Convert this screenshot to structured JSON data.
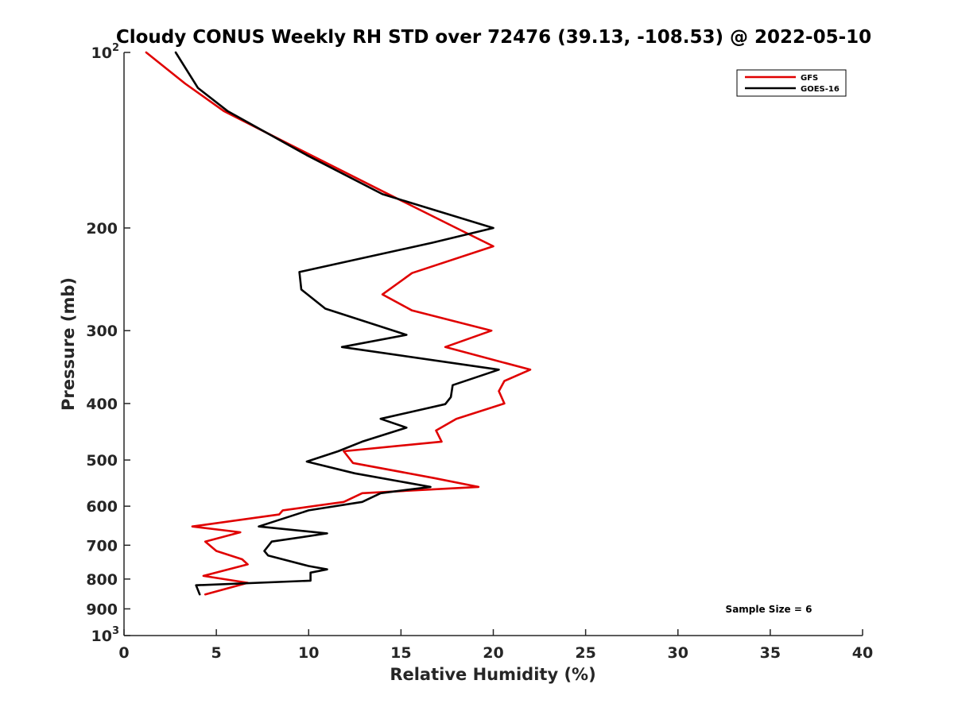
{
  "chart_data": {
    "type": "line",
    "title": "Cloudy CONUS Weekly RH STD over 72476 (39.13, -108.53) @ 2022-05-10",
    "xlabel": "Relative Humidity (%)",
    "ylabel": "Pressure (mb)",
    "xlim": [
      0,
      40
    ],
    "ylim": [
      100,
      1000
    ],
    "y_scale": "log",
    "y_reversed": true,
    "x_ticks": [
      0,
      5,
      10,
      15,
      20,
      25,
      30,
      35,
      40
    ],
    "x_tick_labels": [
      "0",
      "5",
      "10",
      "15",
      "20",
      "25",
      "30",
      "35",
      "40"
    ],
    "y_ticks": [
      100,
      200,
      300,
      400,
      500,
      600,
      700,
      800,
      900,
      1000
    ],
    "y_tick_labels": [
      {
        "base": "10",
        "exp": "2"
      },
      {
        "base": "200",
        "exp": ""
      },
      {
        "base": "300",
        "exp": ""
      },
      {
        "base": "400",
        "exp": ""
      },
      {
        "base": "500",
        "exp": ""
      },
      {
        "base": "600",
        "exp": ""
      },
      {
        "base": "700",
        "exp": ""
      },
      {
        "base": "800",
        "exp": ""
      },
      {
        "base": "900",
        "exp": ""
      },
      {
        "base": "10",
        "exp": "3"
      }
    ],
    "grid": false,
    "legend_position": "top-right",
    "annotation": "Sample Size = 6",
    "series": [
      {
        "name": "GFS",
        "color": "#e00000",
        "points": [
          [
            1.2,
            100
          ],
          [
            3.3,
            113
          ],
          [
            5.4,
            126
          ],
          [
            9.0,
            144
          ],
          [
            14.0,
            173
          ],
          [
            18.0,
            200
          ],
          [
            20.0,
            215
          ],
          [
            15.6,
            239
          ],
          [
            14.0,
            260
          ],
          [
            15.6,
            277
          ],
          [
            19.9,
            300
          ],
          [
            17.4,
            320
          ],
          [
            22.0,
            350
          ],
          [
            20.6,
            366
          ],
          [
            20.3,
            381
          ],
          [
            20.6,
            400
          ],
          [
            18.0,
            425
          ],
          [
            16.9,
            445
          ],
          [
            17.2,
            465
          ],
          [
            11.9,
            483
          ],
          [
            12.4,
            506
          ],
          [
            16.8,
            537
          ],
          [
            19.2,
            556
          ],
          [
            12.9,
            570
          ],
          [
            11.9,
            590
          ],
          [
            8.6,
            610
          ],
          [
            8.4,
            620
          ],
          [
            3.7,
            650
          ],
          [
            6.3,
            665
          ],
          [
            4.4,
            690
          ],
          [
            5.0,
            716
          ],
          [
            6.4,
            740
          ],
          [
            6.7,
            755
          ],
          [
            4.3,
            790
          ],
          [
            6.7,
            812
          ],
          [
            4.4,
            850
          ]
        ]
      },
      {
        "name": "GOES-16",
        "color": "#000000",
        "points": [
          [
            2.8,
            100
          ],
          [
            4.0,
            115
          ],
          [
            5.6,
            126
          ],
          [
            9.9,
            150
          ],
          [
            14.0,
            175
          ],
          [
            20.0,
            200
          ],
          [
            16.7,
            212
          ],
          [
            9.5,
            238
          ],
          [
            9.6,
            255
          ],
          [
            10.9,
            275
          ],
          [
            15.3,
            305
          ],
          [
            11.8,
            320
          ],
          [
            20.3,
            350
          ],
          [
            17.8,
            372
          ],
          [
            17.7,
            390
          ],
          [
            17.4,
            401
          ],
          [
            13.9,
            425
          ],
          [
            15.3,
            440
          ],
          [
            12.9,
            465
          ],
          [
            11.6,
            483
          ],
          [
            9.9,
            503
          ],
          [
            12.5,
            527
          ],
          [
            16.6,
            556
          ],
          [
            13.9,
            570
          ],
          [
            12.9,
            590
          ],
          [
            10.0,
            610
          ],
          [
            7.3,
            650
          ],
          [
            11.0,
            668
          ],
          [
            8.0,
            690
          ],
          [
            7.6,
            716
          ],
          [
            7.8,
            729
          ],
          [
            10.0,
            760
          ],
          [
            11.0,
            770
          ],
          [
            10.1,
            780
          ],
          [
            10.1,
            805
          ],
          [
            3.9,
            820
          ],
          [
            4.1,
            850
          ]
        ]
      }
    ]
  }
}
